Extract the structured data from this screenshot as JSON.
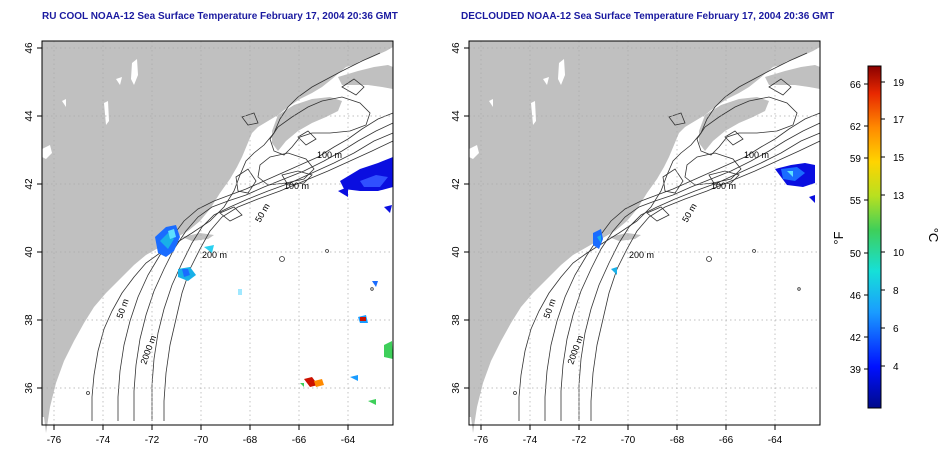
{
  "maps": [
    {
      "title": "RU COOL NOAA-12 Sea Surface Temperature February 17, 2004 20:36 GMT",
      "contour_labels": [
        "100 m",
        "100 m",
        "50 m",
        "200 m",
        "50 m",
        "2000 m"
      ]
    },
    {
      "title": "DECLOUDED NOAA-12 Sea Surface Temperature February 17, 2004 20:36 GMT",
      "contour_labels": [
        "100 m",
        "100 m",
        "50 m",
        "200 m",
        "50 m",
        "2000 m"
      ]
    }
  ],
  "axes": {
    "x_ticks": [
      "-76",
      "-74",
      "-72",
      "-70",
      "-68",
      "-66",
      "-64"
    ],
    "y_ticks": [
      "36",
      "38",
      "40",
      "42",
      "44",
      "46"
    ]
  },
  "colorbar": {
    "f_label": "°F",
    "c_label": "°C",
    "f_ticks": [
      "66",
      "62",
      "59",
      "55",
      "50",
      "46",
      "42",
      "39"
    ],
    "c_ticks": [
      "19",
      "17",
      "15",
      "13",
      "10",
      "8",
      "6",
      "4"
    ]
  },
  "colors": {
    "land": "#c0c0c0",
    "title_text": "#1a1aa0",
    "warm": "#cc1100",
    "cold": "#0008cc"
  }
}
